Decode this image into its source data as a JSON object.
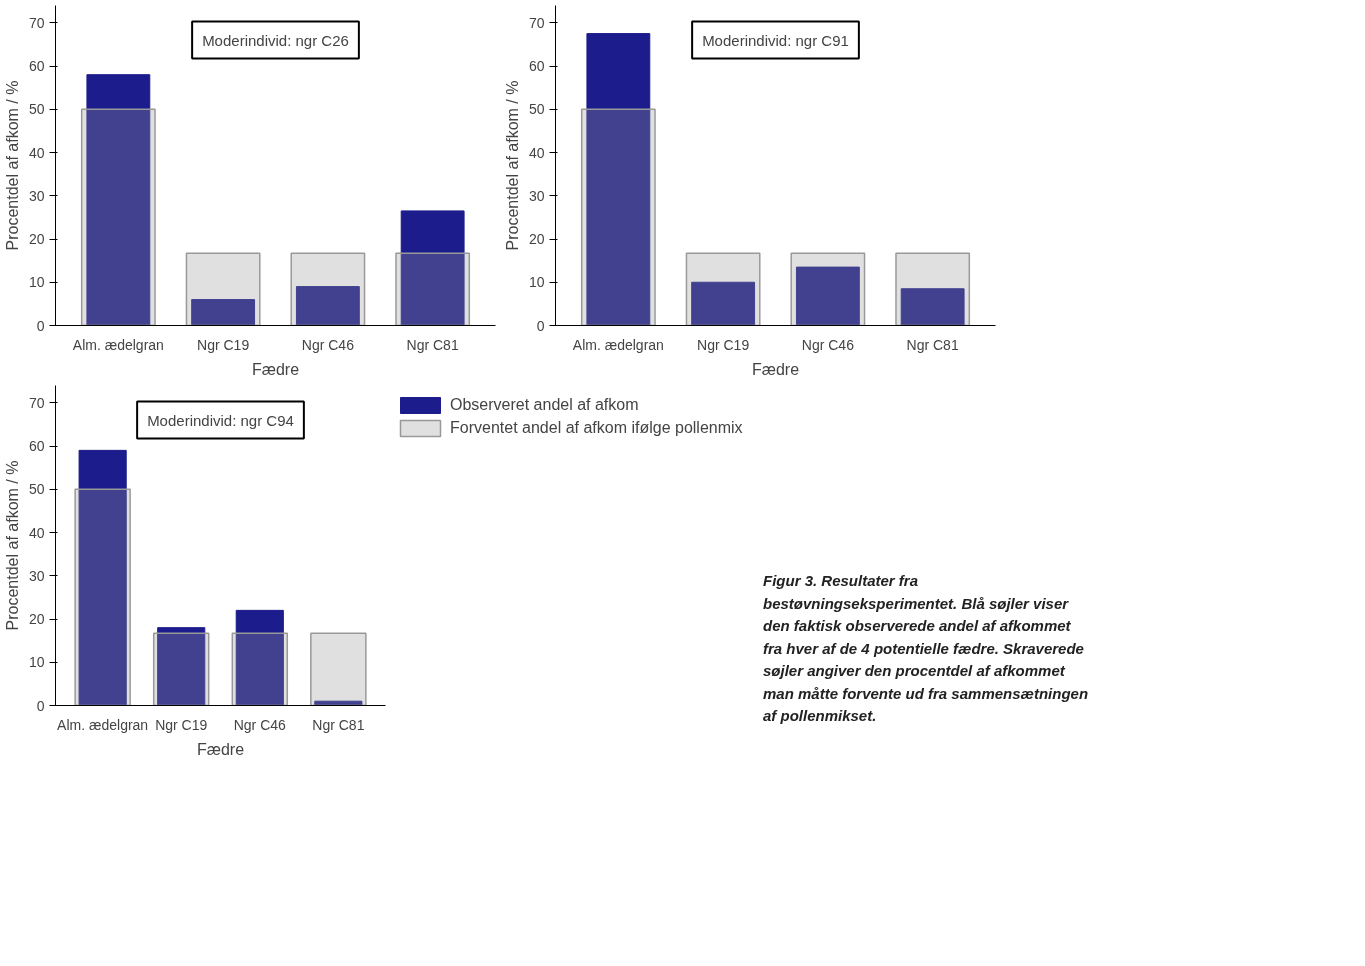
{
  "chart_data": [
    {
      "type": "bar",
      "title": "Moderindivid: ngr C26",
      "xlabel": "Fædre",
      "ylabel": "Procentdel af afkom / %",
      "categories": [
        "Alm. ædelgran",
        "Ngr C19",
        "Ngr C46",
        "Ngr C81"
      ],
      "ylim": [
        0,
        74
      ],
      "yticks": [
        0,
        10,
        20,
        30,
        40,
        50,
        60,
        70
      ],
      "grid": false,
      "series": [
        {
          "color": "#1c1c8c",
          "values": [
            58,
            6,
            9,
            26.5
          ]
        },
        {
          "color": "#999999",
          "values": [
            50,
            16.7,
            16.7,
            16.7
          ]
        }
      ]
    },
    {
      "type": "bar",
      "title": "Moderindivid: ngr C91",
      "xlabel": "Fædre",
      "ylabel": "Procentdel af afkom / %",
      "categories": [
        "Alm. ædelgran",
        "Ngr C19",
        "Ngr C46",
        "Ngr C81"
      ],
      "ylim": [
        0,
        74
      ],
      "yticks": [
        0,
        10,
        20,
        30,
        40,
        50,
        60,
        70
      ],
      "grid": false,
      "series": [
        {
          "color": "#1c1c8c",
          "values": [
            67.5,
            10,
            13.5,
            8.5
          ]
        },
        {
          "color": "#999999",
          "values": [
            50,
            16.7,
            16.7,
            16.7
          ]
        }
      ]
    },
    {
      "type": "bar",
      "title": "Moderindivid: ngr C94",
      "xlabel": "Fædre",
      "ylabel": "Procentdel af afkom / %",
      "categories": [
        "Alm. ædelgran",
        "Ngr C19",
        "Ngr C46",
        "Ngr C81"
      ],
      "ylim": [
        0,
        74
      ],
      "yticks": [
        0,
        10,
        20,
        30,
        40,
        50,
        60,
        70
      ],
      "grid": false,
      "legend": "right",
      "annotations": [
        "Figur 3. Resultater fra bestøvningseksperimentet. Blå søjler viser den faktisk observerede andel af afkommet fra hver af de 4 potentielle fædre. Skraverede søjler angiver den procentdel af afkommet man måtte forvente ud fra sammensætningen af pollenmikset."
      ],
      "series": [
        {
          "name": "Observeret andel af afkom",
          "color": "#1c1c8c",
          "values": [
            59,
            18,
            22,
            1
          ]
        },
        {
          "name": "Forventet andel af afkom ifølge pollenmix",
          "color": "#999999",
          "values": [
            50,
            16.7,
            16.7,
            16.7
          ]
        }
      ]
    }
  ]
}
